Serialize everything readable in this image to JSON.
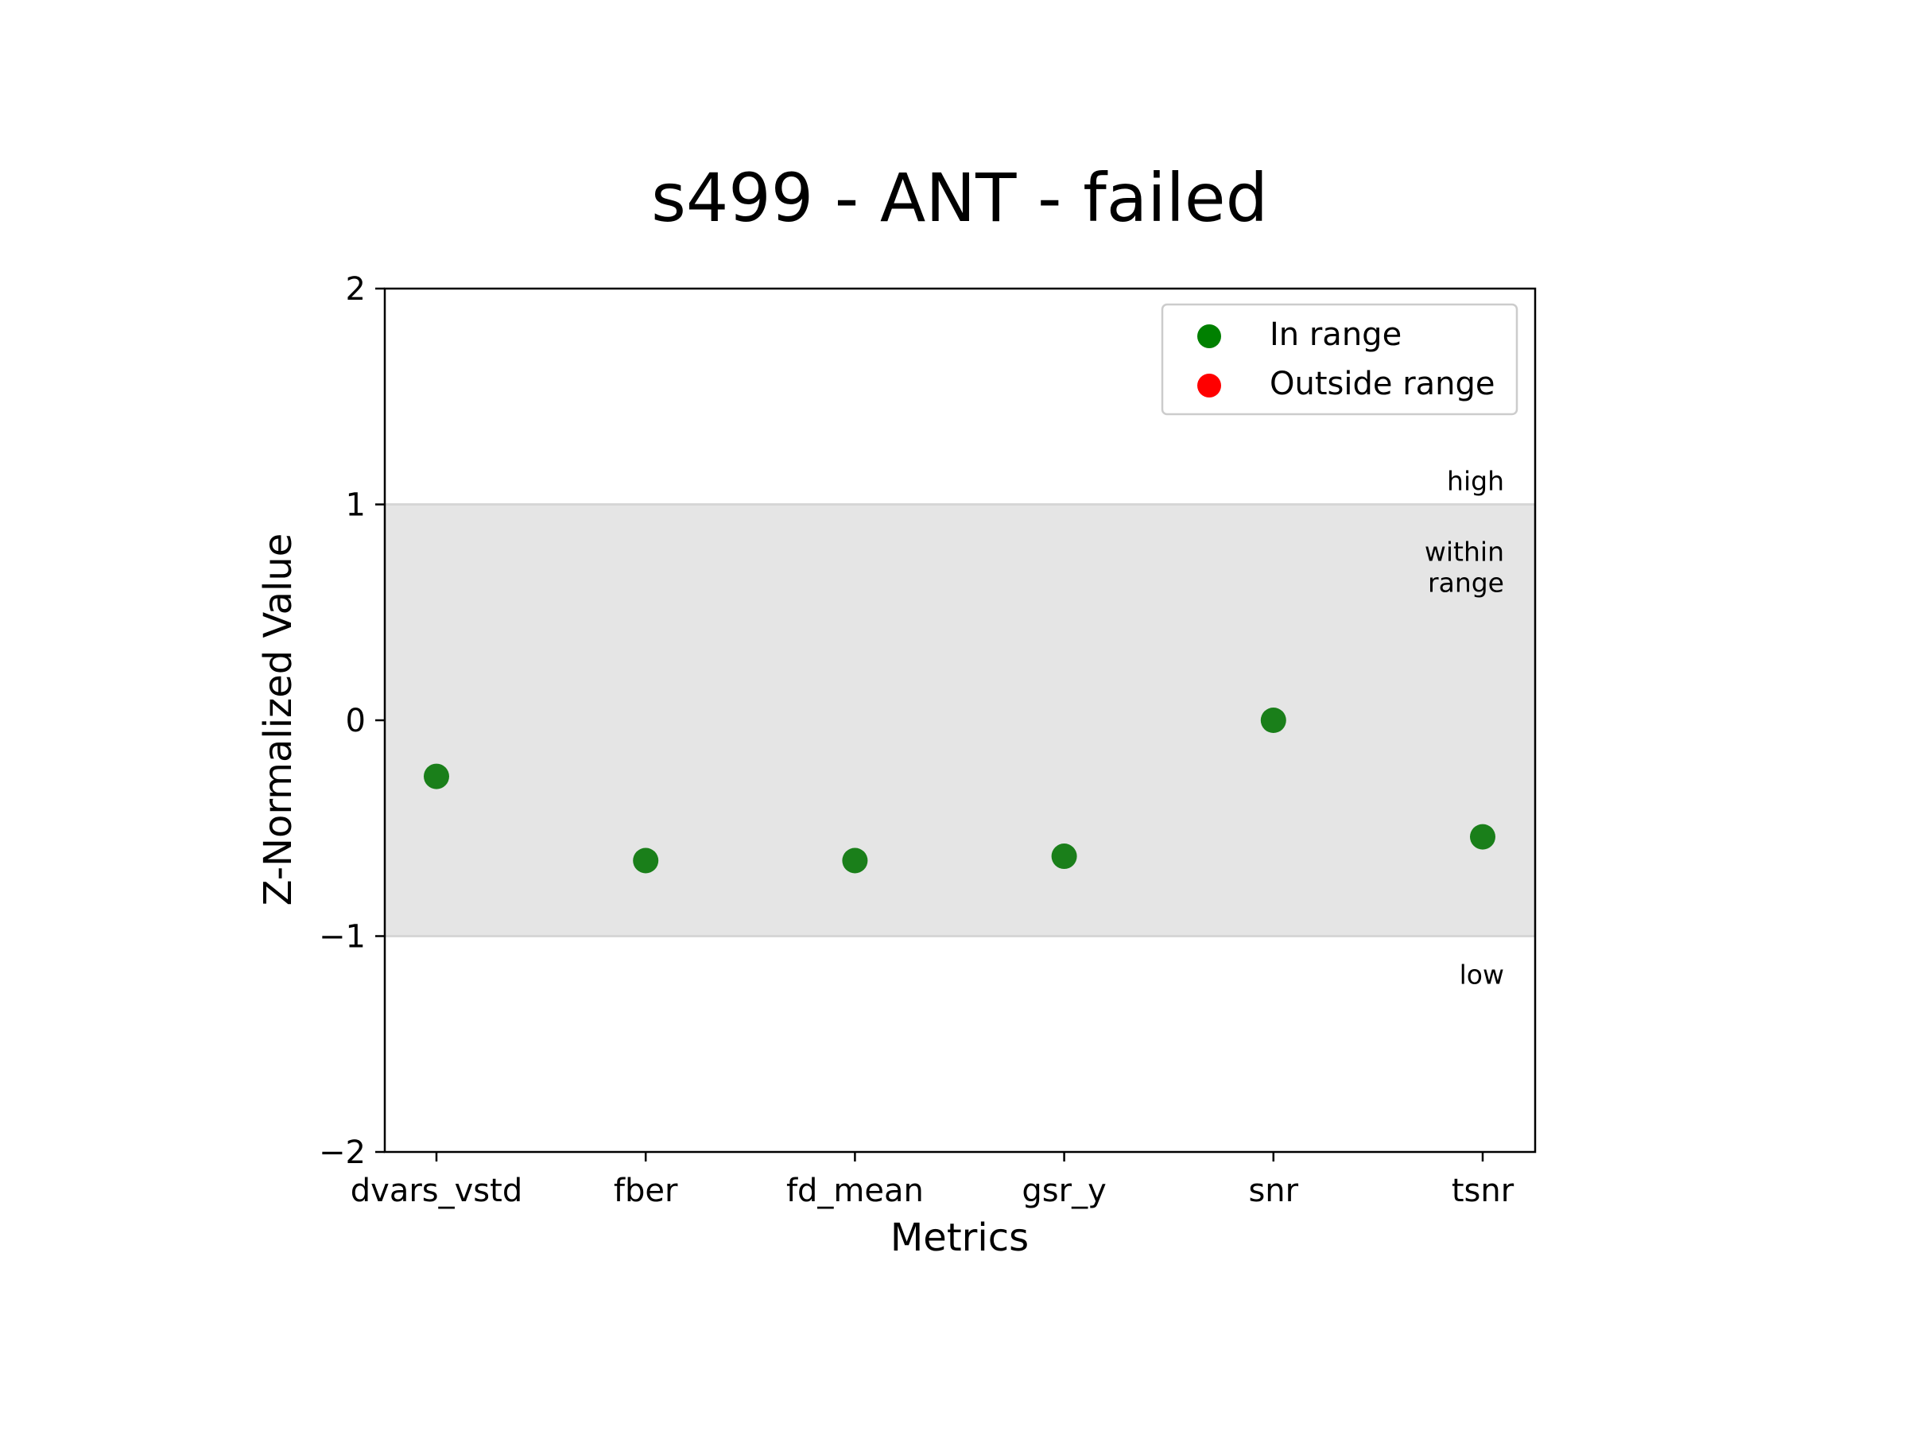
{
  "chart_data": {
    "type": "scatter",
    "title": "s499 - ANT - failed",
    "xlabel": "Metrics",
    "ylabel": "Z-Normalized Value",
    "categories": [
      "dvars_vstd",
      "fber",
      "fd_mean",
      "gsr_y",
      "snr",
      "tsnr"
    ],
    "values": [
      -0.26,
      -0.65,
      -0.65,
      -0.63,
      0.0,
      -0.54
    ],
    "status": [
      "in",
      "in",
      "in",
      "in",
      "in",
      "in"
    ],
    "ylim": [
      -2,
      2
    ],
    "yticks": [
      "2",
      "1",
      "0",
      "−1",
      "−2"
    ],
    "range_band": {
      "low": -1,
      "high": 1,
      "color": "#e5e5e5",
      "line_color": "#d6d6d6"
    },
    "band_labels": {
      "high": "high",
      "within_line1": "within",
      "within_line2": "range",
      "low": "low"
    },
    "legend": {
      "position": "top-right",
      "items": [
        {
          "label": "In range",
          "color": "#008000"
        },
        {
          "label": "Outside range",
          "color": "#ff0000"
        }
      ]
    },
    "point_color_in": "#1a7f1a",
    "point_color_out": "#ff0000",
    "grid": false
  }
}
